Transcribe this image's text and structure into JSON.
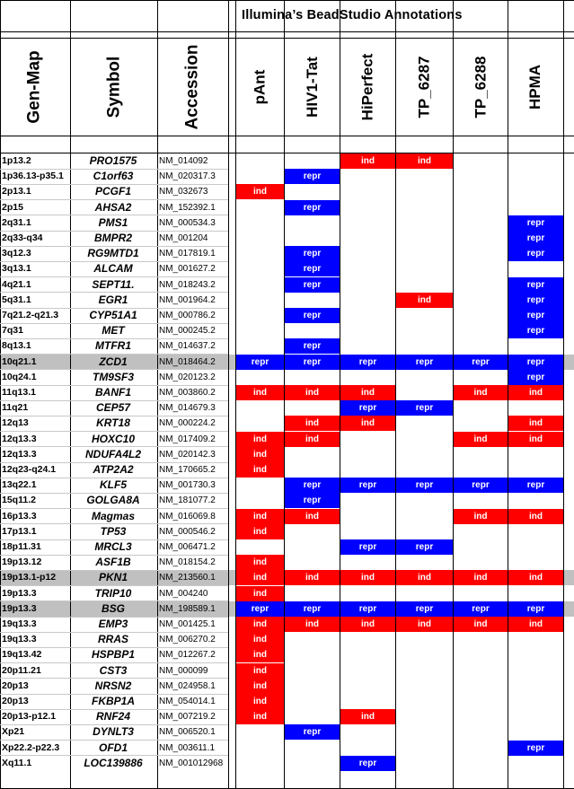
{
  "title": "Illumina’s BeadStudio  Annotations",
  "headers": {
    "genmap": "Gen-Map",
    "symbol": "Symbol",
    "accession": "Accession",
    "conditions": [
      "pAnt",
      "HIV1-Tat",
      "HiPerfect",
      "TP_6287",
      "TP_6288",
      "HPMA"
    ]
  },
  "colors": {
    "ind": "#ff0000",
    "repr": "#0000ff",
    "highlight_row": "#c0c0c0"
  },
  "rows": [
    {
      "genmap": "1p13.2",
      "symbol": "PRO1575",
      "accession": "NM_014092",
      "highlight": false,
      "cells": [
        "",
        "",
        "ind",
        "ind",
        "",
        ""
      ]
    },
    {
      "genmap": "1p36.13-p35.1",
      "symbol": "C1orf63",
      "accession": "NM_020317.3",
      "highlight": false,
      "cells": [
        "",
        "repr",
        "",
        "",
        "",
        ""
      ]
    },
    {
      "genmap": "2p13.1",
      "symbol": "PCGF1",
      "accession": "NM_032673",
      "highlight": false,
      "cells": [
        "ind",
        "",
        "",
        "",
        "",
        ""
      ]
    },
    {
      "genmap": "2p15",
      "symbol": "AHSA2",
      "accession": "NM_152392.1",
      "highlight": false,
      "cells": [
        "",
        "repr",
        "",
        "",
        "",
        ""
      ]
    },
    {
      "genmap": "2q31.1",
      "symbol": "PMS1",
      "accession": "NM_000534.3",
      "highlight": false,
      "cells": [
        "",
        "",
        "",
        "",
        "",
        "repr"
      ]
    },
    {
      "genmap": "2q33-q34",
      "symbol": "BMPR2",
      "accession": "NM_001204",
      "highlight": false,
      "cells": [
        "",
        "",
        "",
        "",
        "",
        "repr"
      ]
    },
    {
      "genmap": "3q12.3",
      "symbol": "RG9MTD1",
      "accession": "NM_017819.1",
      "highlight": false,
      "cells": [
        "",
        "repr",
        "",
        "",
        "",
        "repr"
      ]
    },
    {
      "genmap": "3q13.1",
      "symbol": "ALCAM",
      "accession": "NM_001627.2",
      "highlight": false,
      "cells": [
        "",
        "repr",
        "",
        "",
        "",
        ""
      ]
    },
    {
      "genmap": "4q21.1",
      "symbol": "SEPT11.",
      "accession": "NM_018243.2",
      "highlight": false,
      "cells": [
        "",
        "repr",
        "",
        "",
        "",
        "repr"
      ]
    },
    {
      "genmap": "5q31.1",
      "symbol": "EGR1",
      "accession": "NM_001964.2",
      "highlight": false,
      "cells": [
        "",
        "",
        "",
        "ind",
        "",
        "repr"
      ]
    },
    {
      "genmap": "7q21.2-q21.3",
      "symbol": "CYP51A1",
      "accession": "NM_000786.2",
      "highlight": false,
      "cells": [
        "",
        "repr",
        "",
        "",
        "",
        "repr"
      ]
    },
    {
      "genmap": "7q31",
      "symbol": "MET",
      "accession": "NM_000245.2",
      "highlight": false,
      "cells": [
        "",
        "",
        "",
        "",
        "",
        "repr"
      ]
    },
    {
      "genmap": "8q13.1",
      "symbol": "MTFR1",
      "accession": "NM_014637.2",
      "highlight": false,
      "cells": [
        "",
        "repr",
        "",
        "",
        "",
        ""
      ]
    },
    {
      "genmap": "10q21.1",
      "symbol": "ZCD1",
      "accession": "NM_018464.2",
      "highlight": true,
      "cells": [
        "repr",
        "repr",
        "repr",
        "repr",
        "repr",
        "repr"
      ]
    },
    {
      "genmap": "10q24.1",
      "symbol": "TM9SF3",
      "accession": "NM_020123.2",
      "highlight": false,
      "cells": [
        "",
        "",
        "",
        "",
        "",
        "repr"
      ]
    },
    {
      "genmap": "11q13.1",
      "symbol": "BANF1",
      "accession": "NM_003860.2",
      "highlight": false,
      "cells": [
        "ind",
        "ind",
        "ind",
        "",
        "ind",
        "ind"
      ]
    },
    {
      "genmap": "11q21",
      "symbol": "CEP57",
      "accession": "NM_014679.3",
      "highlight": false,
      "cells": [
        "",
        "",
        "repr",
        "repr",
        "",
        ""
      ]
    },
    {
      "genmap": "12q13",
      "symbol": "KRT18",
      "accession": "NM_000224.2",
      "highlight": false,
      "cells": [
        "",
        "ind",
        "ind",
        "",
        "",
        "ind"
      ]
    },
    {
      "genmap": "12q13.3",
      "symbol": "HOXC10",
      "accession": "NM_017409.2",
      "highlight": false,
      "cells": [
        "ind",
        "ind",
        "",
        "",
        "ind",
        "ind"
      ]
    },
    {
      "genmap": "12q13.3",
      "symbol": "NDUFA4L2",
      "accession": "NM_020142.3",
      "highlight": false,
      "cells": [
        "ind",
        "",
        "",
        "",
        "",
        ""
      ]
    },
    {
      "genmap": "12q23-q24.1",
      "symbol": "ATP2A2",
      "accession": "NM_170665.2",
      "highlight": false,
      "cells": [
        "ind",
        "",
        "",
        "",
        "",
        ""
      ]
    },
    {
      "genmap": "13q22.1",
      "symbol": "KLF5",
      "accession": "NM_001730.3",
      "highlight": false,
      "cells": [
        "",
        "repr",
        "repr",
        "repr",
        "repr",
        "repr"
      ]
    },
    {
      "genmap": "15q11.2",
      "symbol": "GOLGA8A",
      "accession": "NM_181077.2",
      "highlight": false,
      "cells": [
        "",
        "repr",
        "",
        "",
        "",
        ""
      ]
    },
    {
      "genmap": "16p13.3",
      "symbol": "Magmas",
      "accession": "NM_016069.8",
      "highlight": false,
      "cells": [
        "ind",
        "ind",
        "",
        "",
        "ind",
        "ind"
      ]
    },
    {
      "genmap": "17p13.1",
      "symbol": "TP53",
      "accession": "NM_000546.2",
      "highlight": false,
      "cells": [
        "ind",
        "",
        "",
        "",
        "",
        ""
      ]
    },
    {
      "genmap": "18p11.31",
      "symbol": "MRCL3",
      "accession": "NM_006471.2",
      "highlight": false,
      "cells": [
        "",
        "",
        "repr",
        "repr",
        "",
        ""
      ]
    },
    {
      "genmap": "19p13.12",
      "symbol": "ASF1B",
      "accession": "NM_018154.2",
      "highlight": false,
      "cells": [
        "ind",
        "",
        "",
        "",
        "",
        ""
      ]
    },
    {
      "genmap": "19p13.1-p12",
      "symbol": "PKN1",
      "accession": "NM_213560.1",
      "highlight": true,
      "cells": [
        "ind",
        "ind",
        "ind",
        "ind",
        "ind",
        "ind"
      ]
    },
    {
      "genmap": "19p13.3",
      "symbol": "TRIP10",
      "accession": "NM_004240",
      "highlight": false,
      "cells": [
        "ind",
        "",
        "",
        "",
        "",
        ""
      ]
    },
    {
      "genmap": "19p13.3",
      "symbol": "BSG",
      "accession": "NM_198589.1",
      "highlight": true,
      "cells": [
        "repr",
        "repr",
        "repr",
        "repr",
        "repr",
        "repr"
      ]
    },
    {
      "genmap": "19q13.3",
      "symbol": "EMP3",
      "accession": "NM_001425.1",
      "highlight": false,
      "cells": [
        "ind",
        "ind",
        "ind",
        "ind",
        "ind",
        "ind"
      ]
    },
    {
      "genmap": "19q13.3",
      "symbol": "RRAS",
      "accession": "NM_006270.2",
      "highlight": false,
      "cells": [
        "ind",
        "",
        "",
        "",
        "",
        ""
      ]
    },
    {
      "genmap": "19q13.42",
      "symbol": "HSPBP1",
      "accession": "NM_012267.2",
      "highlight": false,
      "cells": [
        "ind",
        "",
        "",
        "",
        "",
        ""
      ]
    },
    {
      "genmap": "20p11.21",
      "symbol": "CST3",
      "accession": "NM_000099",
      "highlight": false,
      "cells": [
        "ind",
        "",
        "",
        "",
        "",
        ""
      ]
    },
    {
      "genmap": "20p13",
      "symbol": "NRSN2",
      "accession": "NM_024958.1",
      "highlight": false,
      "cells": [
        "ind",
        "",
        "",
        "",
        "",
        ""
      ]
    },
    {
      "genmap": "20p13",
      "symbol": "FKBP1A",
      "accession": "NM_054014.1",
      "highlight": false,
      "cells": [
        "ind",
        "",
        "",
        "",
        "",
        ""
      ]
    },
    {
      "genmap": "20p13-p12.1",
      "symbol": "RNF24",
      "accession": "NM_007219.2",
      "highlight": false,
      "cells": [
        "ind",
        "",
        "ind",
        "",
        "",
        ""
      ]
    },
    {
      "genmap": "Xp21",
      "symbol": "DYNLT3",
      "accession": "NM_006520.1",
      "highlight": false,
      "cells": [
        "",
        "repr",
        "",
        "",
        "",
        ""
      ]
    },
    {
      "genmap": "Xp22.2-p22.3",
      "symbol": "OFD1",
      "accession": "NM_003611.1",
      "highlight": false,
      "cells": [
        "",
        "",
        "",
        "",
        "",
        "repr"
      ]
    },
    {
      "genmap": "Xq11.1",
      "symbol": "LOC139886",
      "accession": "NM_001012968",
      "highlight": false,
      "cells": [
        "",
        "",
        "repr",
        "",
        "",
        ""
      ]
    }
  ]
}
